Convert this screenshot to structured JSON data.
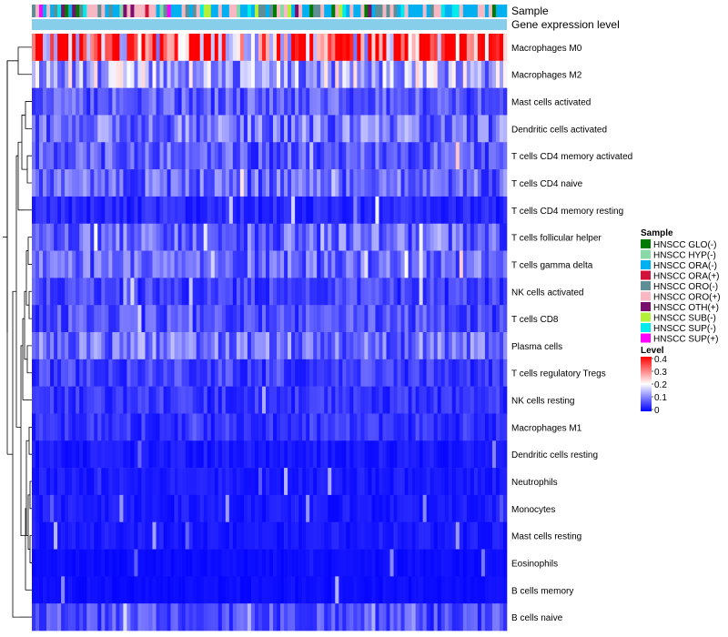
{
  "chart_data": {
    "type": "heatmap",
    "title": "",
    "annotation_labels": [
      "Sample",
      "Gene expression level"
    ],
    "rows": [
      "Macrophages M0",
      "Macrophages M2",
      "Mast cells activated",
      "Dendritic cells activated",
      "T cells CD4 memory activated",
      "T cells CD4 naive",
      "T cells CD4 memory resting",
      "T cells follicular helper",
      "T cells gamma delta",
      "NK cells activated",
      "T cells CD8",
      "Plasma cells",
      "T cells regulatory  Tregs",
      "NK cells resting",
      "Macrophages M1",
      "Dendritic cells resting",
      "Neutrophils",
      "Monocytes",
      "Mast cells resting",
      "Eosinophils",
      "B cells memory",
      "B cells naive"
    ],
    "row_mean_levels": [
      0.3,
      0.14,
      0.07,
      0.09,
      0.07,
      0.08,
      0.03,
      0.08,
      0.08,
      0.05,
      0.06,
      0.09,
      0.05,
      0.04,
      0.04,
      0.02,
      0.02,
      0.02,
      0.02,
      0.01,
      0.01,
      0.06
    ],
    "n_samples": 130,
    "sample_groups": [
      {
        "name": "HNSCC GLO(-)",
        "color": "#007a00"
      },
      {
        "name": "HNSCC HYP(-)",
        "color": "#88d8a8"
      },
      {
        "name": "HNSCC ORA(-)",
        "color": "#00b0f0"
      },
      {
        "name": "HNSCC ORA(+)",
        "color": "#d2143c"
      },
      {
        "name": "HNSCC ORO(-)",
        "color": "#5f8f96"
      },
      {
        "name": "HNSCC ORO(+)",
        "color": "#f7b8c4"
      },
      {
        "name": "HNSCC OTH(+)",
        "color": "#7a0e6c"
      },
      {
        "name": "HNSCC SUB(-)",
        "color": "#b2f03a"
      },
      {
        "name": "HNSCC SUP(-)",
        "color": "#00ecec"
      },
      {
        "name": "HNSCC SUP(+)",
        "color": "#ff00ff"
      }
    ],
    "gene_expression_bar_color": "#87ceeb",
    "legend": {
      "sample_title": "Sample",
      "level_title": "Level",
      "level_ticks": [
        "0.4",
        "0.3",
        "0.2",
        "0.1",
        "0"
      ],
      "level_range": [
        0,
        0.4
      ],
      "colors": {
        "low": "#0000ff",
        "mid": "#ffffff",
        "high": "#ff0000"
      }
    }
  }
}
